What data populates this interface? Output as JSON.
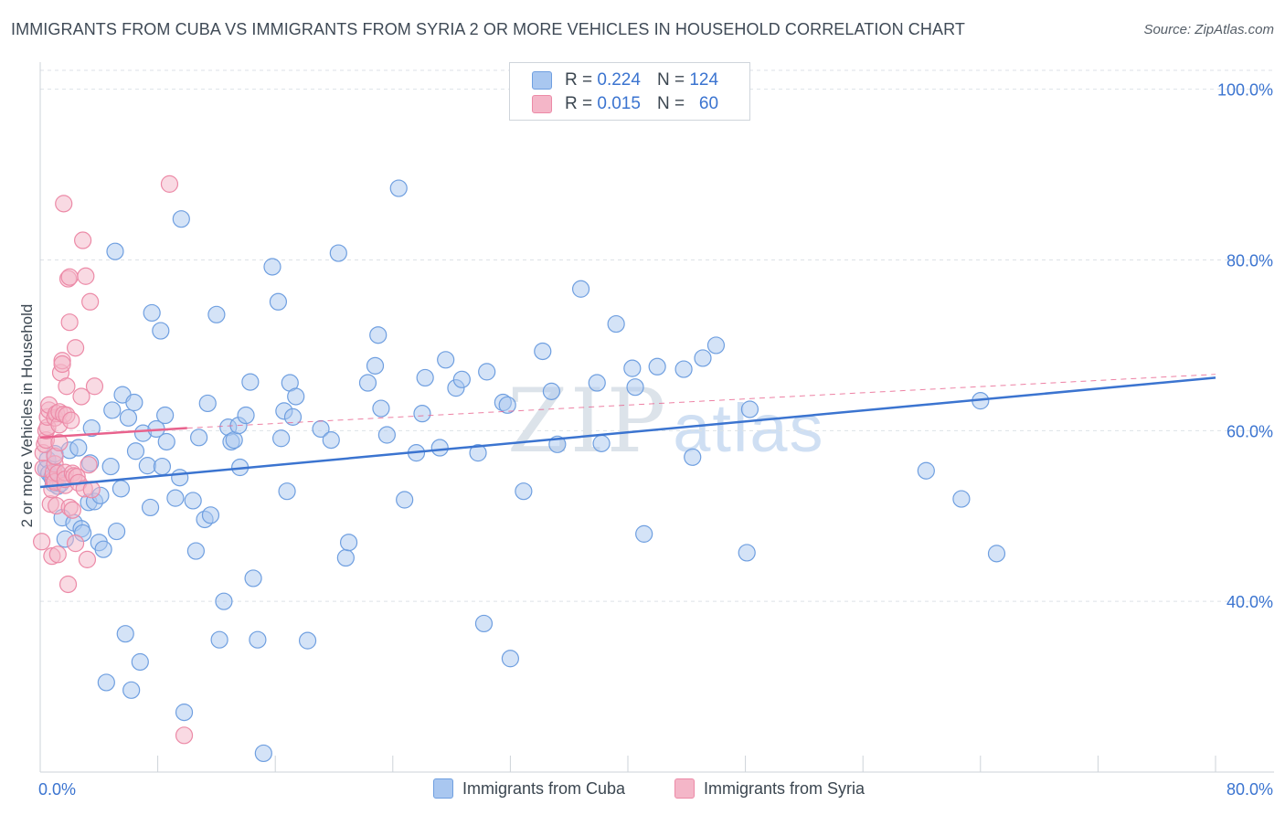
{
  "title": "IMMIGRANTS FROM CUBA VS IMMIGRANTS FROM SYRIA 2 OR MORE VEHICLES IN HOUSEHOLD CORRELATION CHART",
  "source": "Source: ZipAtlas.com",
  "watermark": {
    "zip": "ZIP",
    "atlas": "atlas"
  },
  "stats": [
    {
      "r_label": "R =",
      "r_value": "0.224",
      "n_label": "N =",
      "n_value": "124",
      "color": "#a9c7f0"
    },
    {
      "r_label": "R =",
      "r_value": "0.015",
      "n_label": "N =",
      "n_value": "60",
      "color": "#f4b6c8"
    }
  ],
  "legend": [
    {
      "label": "Immigrants from Cuba",
      "color": "#a9c7f0"
    },
    {
      "label": "Immigrants from Syria",
      "color": "#f4b6c8"
    }
  ],
  "colors": {
    "cuba_fill": "#a9c7f0",
    "cuba_stroke": "#6f9fe0",
    "cuba_line": "#3b74d0",
    "syria_fill": "#f4b6c8",
    "syria_stroke": "#ec8aa7",
    "syria_line": "#e8628d",
    "axis_text": "#3b74d0",
    "grid": "#dde2e7"
  },
  "chart_data": {
    "type": "scatter",
    "title": "IMMIGRANTS FROM CUBA VS IMMIGRANTS FROM SYRIA 2 OR MORE VEHICLES IN HOUSEHOLD CORRELATION CHART",
    "xlabel": "",
    "ylabel": "2 or more Vehicles in Household",
    "xlim": [
      0,
      80
    ],
    "ylim": [
      20,
      102
    ],
    "x_tick_labels": [
      "0.0%",
      "80.0%"
    ],
    "y_tick_labels": [
      "40.0%",
      "60.0%",
      "80.0%",
      "100.0%"
    ],
    "y_ticks": [
      40,
      60,
      80,
      100
    ],
    "grid": true,
    "legend_position": "bottom",
    "series": [
      {
        "name": "Immigrants from Cuba",
        "trend": {
          "x": [
            0,
            80
          ],
          "y": [
            53.4,
            66.2
          ],
          "style": "solid"
        },
        "points": [
          [
            0.4,
            55.5
          ],
          [
            0.5,
            56.6
          ],
          [
            0.6,
            55.0
          ],
          [
            0.8,
            54.5
          ],
          [
            0.9,
            53.8
          ],
          [
            1.0,
            57.3
          ],
          [
            1.1,
            55.2
          ],
          [
            1.2,
            53.5
          ],
          [
            1.4,
            53.8
          ],
          [
            1.5,
            49.8
          ],
          [
            1.7,
            47.3
          ],
          [
            2.0,
            57.7
          ],
          [
            2.3,
            49.2
          ],
          [
            2.6,
            58.0
          ],
          [
            2.8,
            48.5
          ],
          [
            2.9,
            48.0
          ],
          [
            3.3,
            51.6
          ],
          [
            3.4,
            56.2
          ],
          [
            3.5,
            60.3
          ],
          [
            3.7,
            51.7
          ],
          [
            4.0,
            46.9
          ],
          [
            4.1,
            52.4
          ],
          [
            4.3,
            46.1
          ],
          [
            4.5,
            30.5
          ],
          [
            4.8,
            55.8
          ],
          [
            4.9,
            62.4
          ],
          [
            5.1,
            81.0
          ],
          [
            5.2,
            48.2
          ],
          [
            5.5,
            53.2
          ],
          [
            5.6,
            64.2
          ],
          [
            5.8,
            36.2
          ],
          [
            6.0,
            61.5
          ],
          [
            6.2,
            29.6
          ],
          [
            6.4,
            63.3
          ],
          [
            6.5,
            57.6
          ],
          [
            6.8,
            32.9
          ],
          [
            7.0,
            59.7
          ],
          [
            7.3,
            55.9
          ],
          [
            7.5,
            51.0
          ],
          [
            7.6,
            73.8
          ],
          [
            7.9,
            60.2
          ],
          [
            8.2,
            71.7
          ],
          [
            8.3,
            55.8
          ],
          [
            8.5,
            61.8
          ],
          [
            8.6,
            58.7
          ],
          [
            9.2,
            52.1
          ],
          [
            9.5,
            54.5
          ],
          [
            9.6,
            84.8
          ],
          [
            9.8,
            27.0
          ],
          [
            10.4,
            51.8
          ],
          [
            10.6,
            45.9
          ],
          [
            10.8,
            59.2
          ],
          [
            11.2,
            49.6
          ],
          [
            11.4,
            63.2
          ],
          [
            11.6,
            50.1
          ],
          [
            12.0,
            73.6
          ],
          [
            12.2,
            35.5
          ],
          [
            12.5,
            40.0
          ],
          [
            12.8,
            60.4
          ],
          [
            13.0,
            58.7
          ],
          [
            13.2,
            58.9
          ],
          [
            13.5,
            60.6
          ],
          [
            13.6,
            55.7
          ],
          [
            14.0,
            61.8
          ],
          [
            14.3,
            65.7
          ],
          [
            14.5,
            42.7
          ],
          [
            14.8,
            35.5
          ],
          [
            15.2,
            22.2
          ],
          [
            15.8,
            79.2
          ],
          [
            16.2,
            75.1
          ],
          [
            16.4,
            59.1
          ],
          [
            16.6,
            62.3
          ],
          [
            16.8,
            52.9
          ],
          [
            17.0,
            65.6
          ],
          [
            17.2,
            61.6
          ],
          [
            17.4,
            64.0
          ],
          [
            18.2,
            35.4
          ],
          [
            19.1,
            60.2
          ],
          [
            19.8,
            58.9
          ],
          [
            20.3,
            80.8
          ],
          [
            20.8,
            45.1
          ],
          [
            21.0,
            46.9
          ],
          [
            22.3,
            65.6
          ],
          [
            22.8,
            67.6
          ],
          [
            23.0,
            71.2
          ],
          [
            23.2,
            62.6
          ],
          [
            23.6,
            59.5
          ],
          [
            24.4,
            88.4
          ],
          [
            24.8,
            51.9
          ],
          [
            25.6,
            57.4
          ],
          [
            26.0,
            62.0
          ],
          [
            26.2,
            66.2
          ],
          [
            27.2,
            58.0
          ],
          [
            27.6,
            68.3
          ],
          [
            28.3,
            65.0
          ],
          [
            28.7,
            66.0
          ],
          [
            29.8,
            57.4
          ],
          [
            30.2,
            37.4
          ],
          [
            30.4,
            66.9
          ],
          [
            31.5,
            63.3
          ],
          [
            31.8,
            63.0
          ],
          [
            32.0,
            33.3
          ],
          [
            32.9,
            52.9
          ],
          [
            34.2,
            69.3
          ],
          [
            34.8,
            64.6
          ],
          [
            35.2,
            58.4
          ],
          [
            36.8,
            76.6
          ],
          [
            37.9,
            65.6
          ],
          [
            38.2,
            58.5
          ],
          [
            39.2,
            72.5
          ],
          [
            40.3,
            67.3
          ],
          [
            40.5,
            65.1
          ],
          [
            41.1,
            47.9
          ],
          [
            42.0,
            67.5
          ],
          [
            43.8,
            67.2
          ],
          [
            44.4,
            56.9
          ],
          [
            45.1,
            68.5
          ],
          [
            46.0,
            70.0
          ],
          [
            48.1,
            45.7
          ],
          [
            48.3,
            62.5
          ],
          [
            60.3,
            55.3
          ],
          [
            62.7,
            52.0
          ],
          [
            64.0,
            63.5
          ],
          [
            65.1,
            45.6
          ]
        ]
      },
      {
        "name": "Immigrants from Syria",
        "trend": {
          "x": [
            0,
            10
          ],
          "y": [
            59.2,
            60.3
          ],
          "style": "solid",
          "extended": {
            "x": [
              10,
              80
            ],
            "y": [
              60.3,
              66.6
            ],
            "style": "dashed"
          }
        },
        "points": [
          [
            0.1,
            47.0
          ],
          [
            0.2,
            55.6
          ],
          [
            0.2,
            57.4
          ],
          [
            0.3,
            58.4
          ],
          [
            0.4,
            58.9
          ],
          [
            0.4,
            60.0
          ],
          [
            0.5,
            60.4
          ],
          [
            0.5,
            61.6
          ],
          [
            0.6,
            62.4
          ],
          [
            0.6,
            63.0
          ],
          [
            0.7,
            51.4
          ],
          [
            0.8,
            45.3
          ],
          [
            0.8,
            53.1
          ],
          [
            0.9,
            54.2
          ],
          [
            0.9,
            55.1
          ],
          [
            1.0,
            54.0
          ],
          [
            1.0,
            56.1
          ],
          [
            1.0,
            57.0
          ],
          [
            1.0,
            61.5
          ],
          [
            1.1,
            62.0
          ],
          [
            1.1,
            51.2
          ],
          [
            1.2,
            45.5
          ],
          [
            1.2,
            55.0
          ],
          [
            1.3,
            58.6
          ],
          [
            1.3,
            60.7
          ],
          [
            1.3,
            62.2
          ],
          [
            1.4,
            66.8
          ],
          [
            1.5,
            68.2
          ],
          [
            1.5,
            67.8
          ],
          [
            1.6,
            86.6
          ],
          [
            1.6,
            61.9
          ],
          [
            1.7,
            53.6
          ],
          [
            1.7,
            55.1
          ],
          [
            1.7,
            54.3
          ],
          [
            1.8,
            61.8
          ],
          [
            1.8,
            65.2
          ],
          [
            1.9,
            77.8
          ],
          [
            1.9,
            42.0
          ],
          [
            2.0,
            78.0
          ],
          [
            2.0,
            72.7
          ],
          [
            2.0,
            51.0
          ],
          [
            2.1,
            61.2
          ],
          [
            2.2,
            55.0
          ],
          [
            2.2,
            50.7
          ],
          [
            2.3,
            54.7
          ],
          [
            2.4,
            46.8
          ],
          [
            2.4,
            69.7
          ],
          [
            2.5,
            54.6
          ],
          [
            2.6,
            53.9
          ],
          [
            2.8,
            64.0
          ],
          [
            2.9,
            82.3
          ],
          [
            3.0,
            53.2
          ],
          [
            3.1,
            78.1
          ],
          [
            3.2,
            44.9
          ],
          [
            3.3,
            56.0
          ],
          [
            3.4,
            75.1
          ],
          [
            3.5,
            53.1
          ],
          [
            3.7,
            65.2
          ],
          [
            8.8,
            88.9
          ],
          [
            9.8,
            24.3
          ]
        ]
      }
    ]
  }
}
